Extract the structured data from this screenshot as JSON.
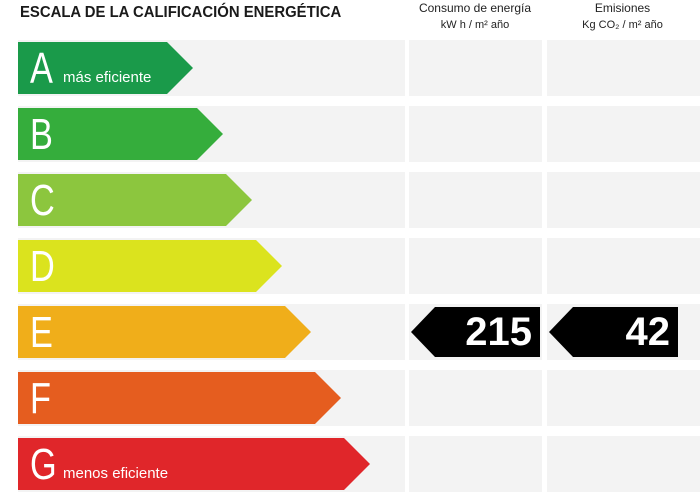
{
  "title": "ESCALA DE LA CALIFICACIÓN ENERGÉTICA",
  "columns": {
    "consumo": {
      "label": "Consumo de energía",
      "unit": "kW h / m² año"
    },
    "emisiones": {
      "label": "Emisiones",
      "unit": "Kg CO₂ / m² año"
    }
  },
  "bands": [
    {
      "letter": "A",
      "label": "más eficiente",
      "color": "#1a9a4a"
    },
    {
      "letter": "B",
      "label": "",
      "color": "#35ad3c"
    },
    {
      "letter": "C",
      "label": "",
      "color": "#8cc63e"
    },
    {
      "letter": "D",
      "label": "",
      "color": "#dbe31e"
    },
    {
      "letter": "E",
      "label": "",
      "color": "#f0ae1a"
    },
    {
      "letter": "F",
      "label": "",
      "color": "#e55d1f"
    },
    {
      "letter": "G",
      "label": "menos eficiente",
      "color": "#e0262a"
    }
  ],
  "rating": {
    "band": "E",
    "consumo": "215",
    "emisiones": "42"
  }
}
